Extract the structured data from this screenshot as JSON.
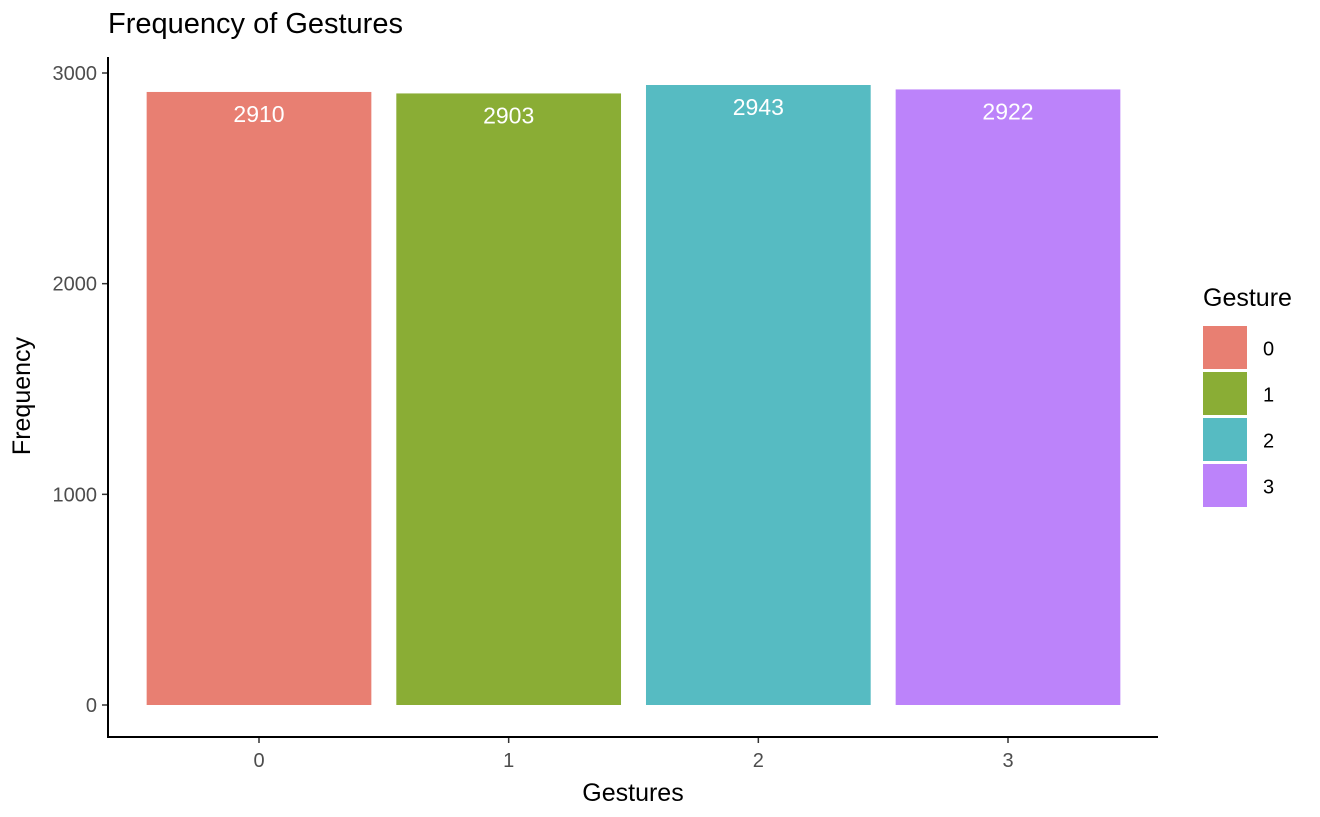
{
  "chart_data": {
    "type": "bar",
    "title": "Frequency of Gestures",
    "xlabel": "Gestures",
    "ylabel": "Frequency",
    "categories": [
      "0",
      "1",
      "2",
      "3"
    ],
    "values": [
      2910,
      2903,
      2943,
      2922
    ],
    "data_labels": [
      "2910",
      "2903",
      "2943",
      "2922"
    ],
    "ylim": [
      0,
      3000
    ],
    "yticks": [
      0,
      1000,
      2000,
      3000
    ],
    "ytick_labels": [
      "0",
      "1000",
      "2000",
      "3000"
    ],
    "colors": [
      "#E87F72",
      "#8AAD35",
      "#56BBC2",
      "#BC83FA"
    ],
    "grid": false,
    "legend": {
      "title": "Gesture",
      "placement": "right",
      "entries": [
        "0",
        "1",
        "2",
        "3"
      ]
    }
  }
}
